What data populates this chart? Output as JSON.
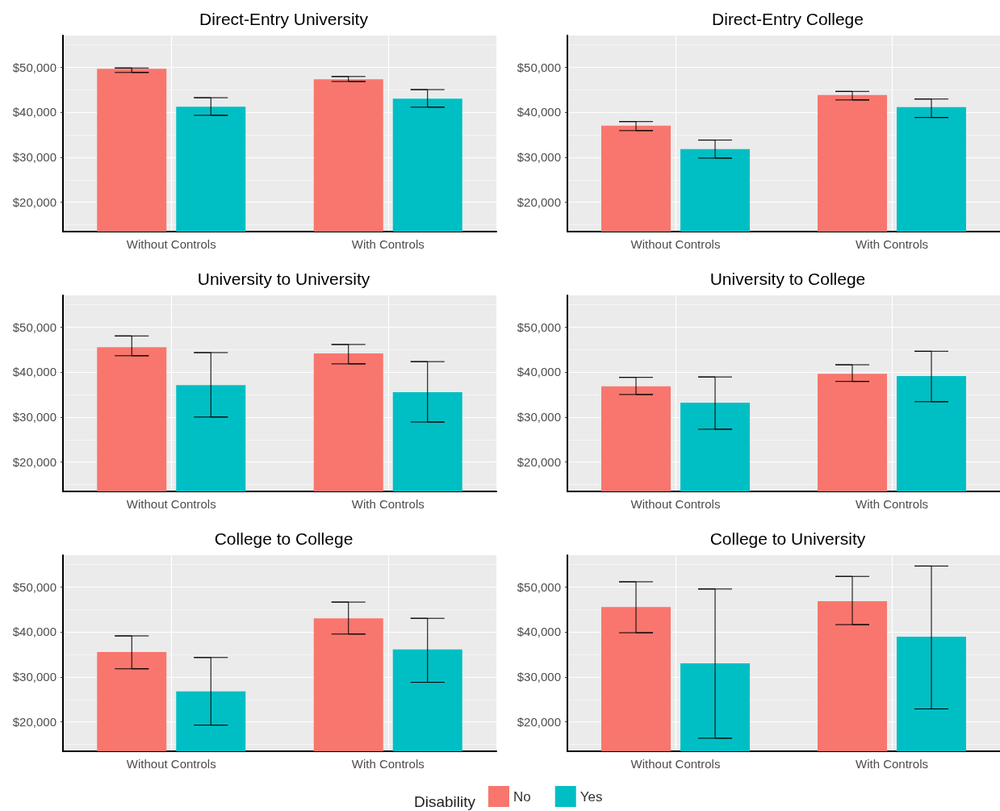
{
  "chart_data": [
    {
      "type": "bar",
      "title": "Direct-Entry University",
      "categories": [
        "Without Controls",
        "With Controls"
      ],
      "ylim": [
        13500,
        57000
      ],
      "yticks": [
        {
          "value": 20000,
          "label": "$20,000"
        },
        {
          "value": 30000,
          "label": "$30,000"
        },
        {
          "value": 40000,
          "label": "$40,000"
        },
        {
          "value": 50000,
          "label": "$50,000"
        }
      ],
      "grid": true,
      "series": [
        {
          "color": "#f8766d",
          "values": [
            49600,
            47300
          ],
          "errors": [
            [
              48800,
              49800
            ],
            [
              46800,
              47900
            ]
          ]
        },
        {
          "color": "#00bfc4",
          "values": [
            41200,
            43000
          ],
          "errors": [
            [
              39300,
              43200
            ],
            [
              41100,
              45000
            ]
          ]
        }
      ]
    },
    {
      "type": "bar",
      "title": "Direct-Entry College",
      "categories": [
        "Without Controls",
        "With Controls"
      ],
      "ylim": [
        13500,
        57000
      ],
      "yticks": [
        {
          "value": 20000,
          "label": "$20,000"
        },
        {
          "value": 30000,
          "label": "$30,000"
        },
        {
          "value": 40000,
          "label": "$40,000"
        },
        {
          "value": 50000,
          "label": "$50,000"
        }
      ],
      "grid": true,
      "series": [
        {
          "color": "#f8766d",
          "values": [
            37000,
            43800
          ],
          "errors": [
            [
              35900,
              37900
            ],
            [
              42700,
              44600
            ]
          ]
        },
        {
          "color": "#00bfc4",
          "values": [
            31800,
            41100
          ],
          "errors": [
            [
              29800,
              33800
            ],
            [
              38800,
              42900
            ]
          ]
        }
      ]
    },
    {
      "type": "bar",
      "title": "University to University",
      "categories": [
        "Without Controls",
        "With Controls"
      ],
      "ylim": [
        13500,
        57000
      ],
      "yticks": [
        {
          "value": 20000,
          "label": "$20,000"
        },
        {
          "value": 30000,
          "label": "$30,000"
        },
        {
          "value": 40000,
          "label": "$40,000"
        },
        {
          "value": 50000,
          "label": "$50,000"
        }
      ],
      "grid": true,
      "series": [
        {
          "color": "#f8766d",
          "values": [
            45500,
            44100
          ],
          "errors": [
            [
              43600,
              48000
            ],
            [
              41800,
              46100
            ]
          ]
        },
        {
          "color": "#00bfc4",
          "values": [
            37100,
            35500
          ],
          "errors": [
            [
              30000,
              44300
            ],
            [
              28900,
              42300
            ]
          ]
        }
      ]
    },
    {
      "type": "bar",
      "title": "University to College",
      "categories": [
        "Without Controls",
        "With Controls"
      ],
      "ylim": [
        13500,
        57000
      ],
      "yticks": [
        {
          "value": 20000,
          "label": "$20,000"
        },
        {
          "value": 30000,
          "label": "$30,000"
        },
        {
          "value": 40000,
          "label": "$40,000"
        },
        {
          "value": 50000,
          "label": "$50,000"
        }
      ],
      "grid": true,
      "series": [
        {
          "color": "#f8766d",
          "values": [
            36800,
            39600
          ],
          "errors": [
            [
              35000,
              38800
            ],
            [
              37900,
              41600
            ]
          ]
        },
        {
          "color": "#00bfc4",
          "values": [
            33200,
            39100
          ],
          "errors": [
            [
              27300,
              38900
            ],
            [
              33400,
              44600
            ]
          ]
        }
      ]
    },
    {
      "type": "bar",
      "title": "College to College",
      "categories": [
        "Without Controls",
        "With Controls"
      ],
      "ylim": [
        13500,
        57000
      ],
      "yticks": [
        {
          "value": 20000,
          "label": "$20,000"
        },
        {
          "value": 30000,
          "label": "$30,000"
        },
        {
          "value": 40000,
          "label": "$40,000"
        },
        {
          "value": 50000,
          "label": "$50,000"
        }
      ],
      "grid": true,
      "series": [
        {
          "color": "#f8766d",
          "values": [
            35500,
            43000
          ],
          "errors": [
            [
              31800,
              39100
            ],
            [
              39500,
              46600
            ]
          ]
        },
        {
          "color": "#00bfc4",
          "values": [
            26800,
            36100
          ],
          "errors": [
            [
              19300,
              34300
            ],
            [
              28800,
              43000
            ]
          ]
        }
      ]
    },
    {
      "type": "bar",
      "title": "College to University",
      "categories": [
        "Without Controls",
        "With Controls"
      ],
      "ylim": [
        13500,
        57000
      ],
      "yticks": [
        {
          "value": 20000,
          "label": "$20,000"
        },
        {
          "value": 30000,
          "label": "$30,000"
        },
        {
          "value": 40000,
          "label": "$40,000"
        },
        {
          "value": 50000,
          "label": "$50,000"
        }
      ],
      "grid": true,
      "legend": "bottom",
      "legend_title": "Disability",
      "series": [
        {
          "name": "No",
          "color": "#f8766d",
          "values": [
            45500,
            46800
          ],
          "errors": [
            [
              39800,
              51100
            ],
            [
              41600,
              52300
            ]
          ]
        },
        {
          "name": "Yes",
          "color": "#00bfc4",
          "values": [
            33000,
            38900
          ],
          "errors": [
            [
              16400,
              49500
            ],
            [
              22900,
              54600
            ]
          ]
        }
      ]
    }
  ]
}
